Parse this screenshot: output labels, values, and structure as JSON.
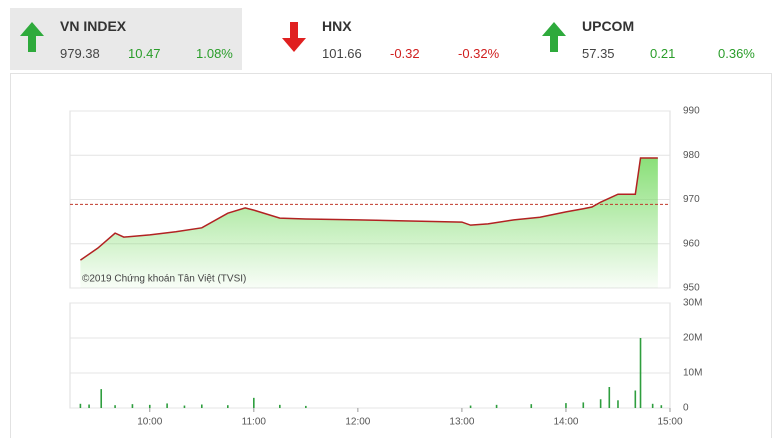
{
  "header": {
    "indices": [
      {
        "name": "VN INDEX",
        "value": "979.38",
        "change": "10.47",
        "percent": "1.08%",
        "direction": "up"
      },
      {
        "name": "HNX",
        "value": "101.66",
        "change": "-0.32",
        "percent": "-0.32%",
        "direction": "down"
      },
      {
        "name": "UPCOM",
        "value": "57.35",
        "change": "0.21",
        "percent": "0.36%",
        "direction": "up"
      }
    ]
  },
  "chart_data": [
    {
      "type": "line",
      "annotation": "©2019 Chứng khoán Tân Việt (TVSI)",
      "x": [
        "09:20",
        "09:30",
        "09:40",
        "09:45",
        "10:00",
        "10:15",
        "10:30",
        "10:45",
        "10:55",
        "11:00",
        "11:15",
        "11:30",
        "12:00",
        "13:00",
        "13:05",
        "13:15",
        "13:30",
        "13:45",
        "14:00",
        "14:10",
        "14:15",
        "14:20",
        "14:30",
        "14:40",
        "14:43",
        "14:53"
      ],
      "series": [
        {
          "color": "#b22222",
          "values": [
            956.3,
            959.0,
            962.4,
            961.5,
            962.0,
            962.7,
            963.6,
            966.9,
            968.1,
            967.6,
            965.8,
            965.6,
            965.4,
            964.9,
            964.2,
            964.5,
            965.4,
            966.0,
            967.2,
            967.9,
            968.3,
            969.4,
            971.2,
            971.2,
            979.38,
            979.38
          ]
        }
      ],
      "reference": 968.91,
      "reference_color": "#c0392b",
      "area_color": "#7ddc6a",
      "xlim": [
        "09:14",
        "15:00"
      ],
      "xticks": [
        "10:00",
        "11:00",
        "12:00",
        "13:00",
        "14:00",
        "15:00"
      ],
      "ylim": [
        950,
        990
      ],
      "yticks": [
        950,
        960,
        970,
        980,
        990
      ],
      "grid": true
    },
    {
      "type": "bar",
      "x": [
        "09:20",
        "09:25",
        "09:32",
        "09:40",
        "09:50",
        "10:00",
        "10:10",
        "10:20",
        "10:30",
        "10:45",
        "11:00",
        "11:15",
        "11:30",
        "13:05",
        "13:20",
        "13:40",
        "14:00",
        "14:10",
        "14:20",
        "14:25",
        "14:30",
        "14:40",
        "14:43",
        "14:50",
        "14:55"
      ],
      "values": [
        1.2,
        1.0,
        5.4,
        0.8,
        1.1,
        0.9,
        1.3,
        0.7,
        1.0,
        0.8,
        2.9,
        0.9,
        0.6,
        0.7,
        0.9,
        1.1,
        1.4,
        1.6,
        2.5,
        6.0,
        2.2,
        5.0,
        20,
        1.2,
        0.8
      ],
      "color": "#2e9e3e",
      "xlim": [
        "09:14",
        "15:00"
      ],
      "xticks": [
        "10:00",
        "11:00",
        "12:00",
        "13:00",
        "14:00",
        "15:00"
      ],
      "ylim": [
        0,
        30
      ],
      "yticks": [
        0,
        {
          "value": 10,
          "label": "10M"
        },
        {
          "value": 20,
          "label": "20M"
        },
        {
          "value": 30,
          "label": "30M"
        }
      ],
      "grid": true
    }
  ]
}
